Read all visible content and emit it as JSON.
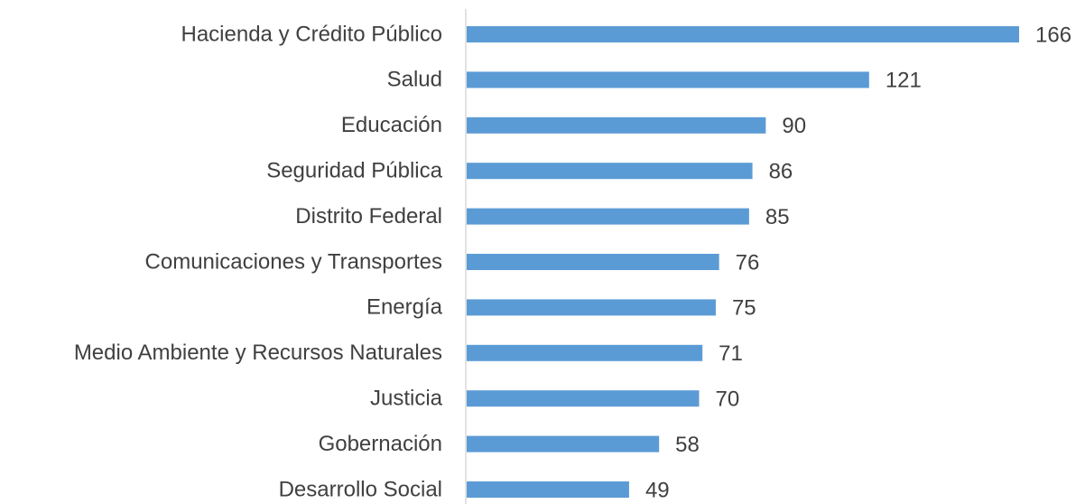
{
  "chart_data": {
    "type": "bar",
    "orientation": "horizontal",
    "categories": [
      "Hacienda y Crédito Público",
      "Salud",
      "Educación",
      "Seguridad Pública",
      "Distrito Federal",
      "Comunicaciones y Transportes",
      "Energía",
      "Medio Ambiente y Recursos Naturales",
      "Justicia",
      "Gobernación",
      "Desarrollo Social"
    ],
    "values": [
      166,
      121,
      90,
      86,
      85,
      76,
      75,
      71,
      70,
      58,
      49
    ],
    "color": "#5b9bd5"
  }
}
